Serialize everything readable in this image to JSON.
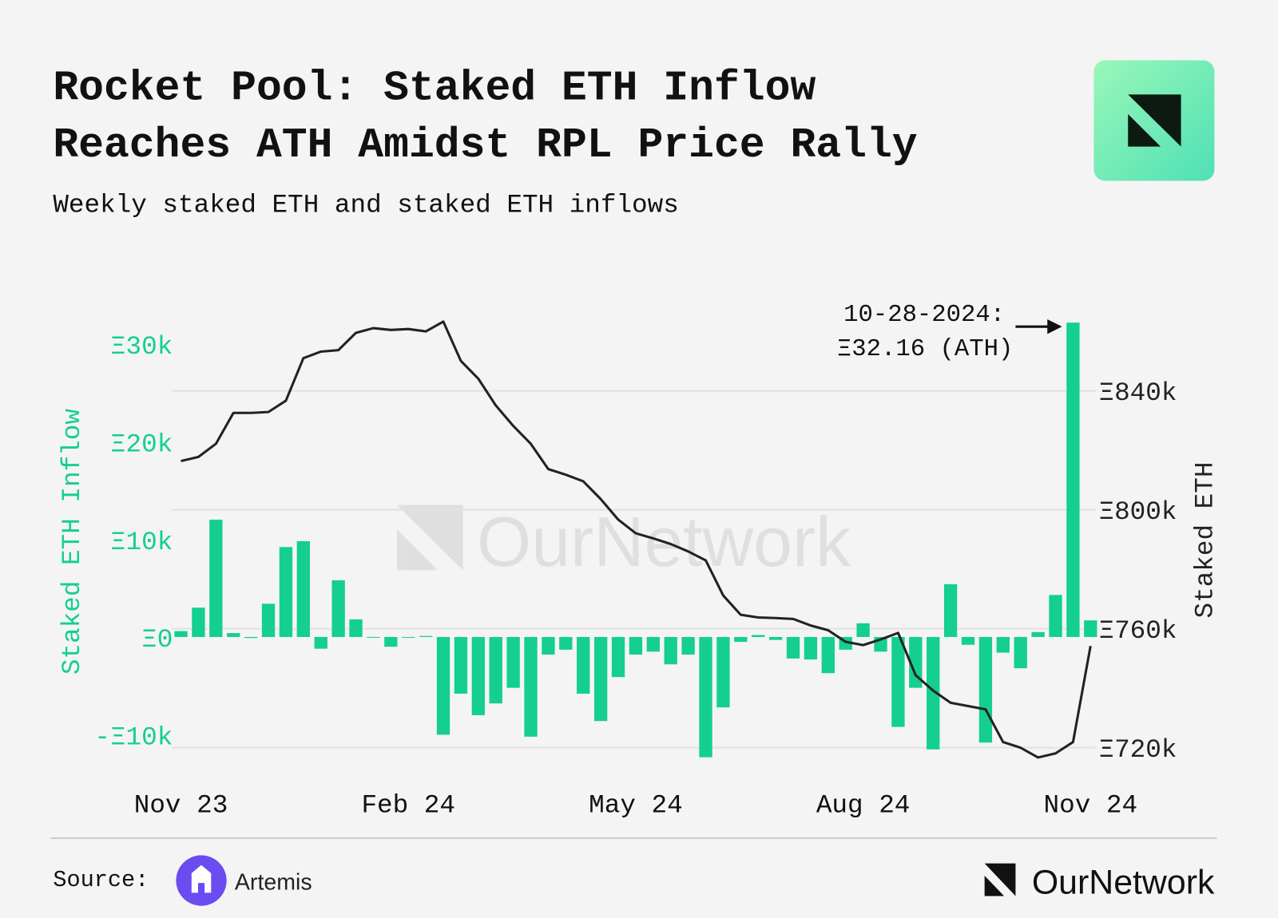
{
  "chart_data": {
    "type": "bar-line",
    "title_lines": [
      "Rocket Pool: Staked ETH Inflow",
      "Reaches ATH Amidst RPL Price Rally"
    ],
    "subtitle": "Weekly staked ETH and staked ETH inflows",
    "ylabel": "Staked ETH Inflow",
    "y2label": "Staked ETH",
    "categories": [
      "Nov 23",
      null,
      null,
      null,
      null,
      null,
      null,
      null,
      null,
      null,
      null,
      null,
      null,
      "Feb 24",
      null,
      null,
      null,
      null,
      null,
      null,
      null,
      null,
      null,
      null,
      null,
      null,
      "May 24",
      null,
      null,
      null,
      null,
      null,
      null,
      null,
      null,
      null,
      null,
      null,
      null,
      "Aug 24",
      null,
      null,
      null,
      null,
      null,
      null,
      null,
      null,
      null,
      null,
      null,
      null,
      "Nov 24"
    ],
    "series": [
      {
        "name": "Staked ETH Inflow",
        "color": "#14cf8f",
        "axis": "y",
        "values": [
          600,
          3000,
          12000,
          400,
          -100,
          3400,
          9200,
          9800,
          -1200,
          5800,
          1800,
          0,
          -1000,
          0,
          100,
          -10000,
          -5800,
          -8000,
          -6800,
          -5200,
          -10200,
          -1800,
          -1300,
          -5800,
          -8600,
          -4100,
          -1800,
          -1500,
          -2800,
          -1800,
          -12300,
          -7200,
          -500,
          200,
          -300,
          -2200,
          -2300,
          -3700,
          -1300,
          1400,
          -1500,
          -9200,
          -5200,
          -11500,
          5400,
          -800,
          -10800,
          -1600,
          -3200,
          500,
          4300,
          32160,
          1700
        ]
      },
      {
        "name": "Staked ETH",
        "color": "#222222",
        "axis": "y2",
        "values": [
          816400,
          817800,
          822200,
          832600,
          832600,
          832900,
          836700,
          851000,
          853200,
          853700,
          859500,
          861100,
          860500,
          860800,
          860000,
          863300,
          850100,
          844100,
          835100,
          828200,
          822200,
          813700,
          811800,
          809600,
          803600,
          796700,
          792100,
          790400,
          788500,
          786000,
          783000,
          771200,
          764700,
          763800,
          763600,
          763300,
          761100,
          759500,
          755600,
          754500,
          756400,
          758600,
          744400,
          739200,
          735100,
          734000,
          732900,
          721900,
          720000,
          716700,
          718100,
          721900,
          754200
        ]
      }
    ],
    "ylim": [
      -13000,
      34000
    ],
    "yticks": [
      {
        "value": -10000,
        "label": "-Ξ10k"
      },
      {
        "value": 0,
        "label": "Ξ0"
      },
      {
        "value": 10000,
        "label": "Ξ10k"
      },
      {
        "value": 20000,
        "label": "Ξ20k"
      },
      {
        "value": 30000,
        "label": "Ξ30k"
      }
    ],
    "y2lim": [
      714500,
      869000
    ],
    "y2ticks": [
      {
        "value": 720000,
        "label": "Ξ720k"
      },
      {
        "value": 760000,
        "label": "Ξ760k"
      },
      {
        "value": 800000,
        "label": "Ξ800k"
      },
      {
        "value": 840000,
        "label": "Ξ840k"
      }
    ],
    "grid": true,
    "annotation": {
      "lines": [
        "10-28-2024:",
        "Ξ32.16 (ATH)"
      ]
    }
  },
  "footer": {
    "source_label": "Source:",
    "source_name": "Artemis",
    "brand": "OurNetwork",
    "watermark": "OurNetwork"
  }
}
